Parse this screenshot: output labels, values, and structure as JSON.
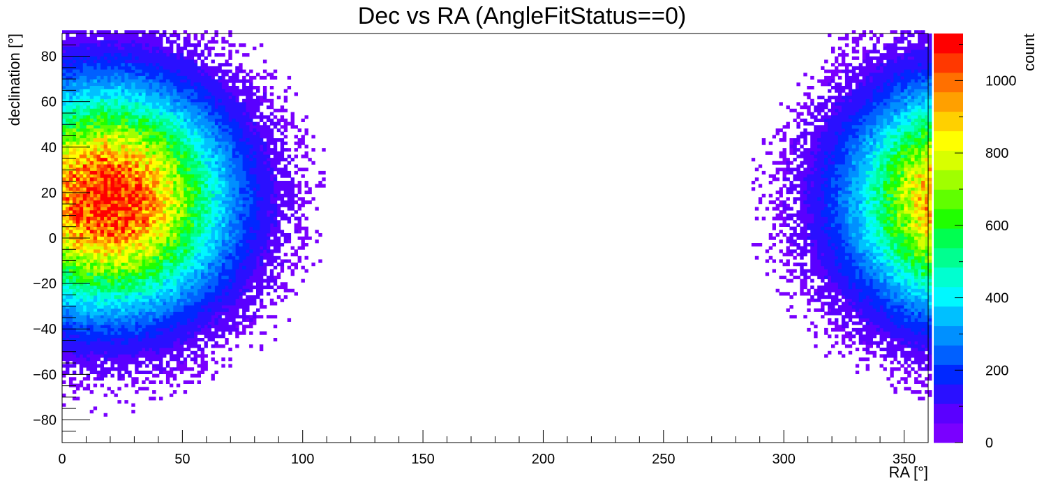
{
  "chart_data": {
    "type": "heatmap",
    "title": "Dec vs RA (AngleFitStatus==0)",
    "xlabel": "RA [°]",
    "ylabel": "declination [°]",
    "colorbar_label": "count",
    "xlim": [
      0,
      360
    ],
    "ylim": [
      -90,
      90
    ],
    "zlim": [
      0,
      1130
    ],
    "x_ticks": [
      0,
      50,
      100,
      150,
      200,
      250,
      300,
      350
    ],
    "x_tick_labels": [
      "0",
      "50",
      "100",
      "150",
      "200",
      "250",
      "300",
      "350"
    ],
    "y_ticks": [
      -80,
      -60,
      -40,
      -20,
      0,
      20,
      40,
      60,
      80
    ],
    "y_tick_labels": [
      "−80",
      "−60",
      "−40",
      "−20",
      "0",
      "20",
      "40",
      "60",
      "80"
    ],
    "z_ticks": [
      0,
      200,
      400,
      600,
      800,
      1000
    ],
    "z_tick_labels": [
      "0",
      "200",
      "400",
      "600",
      "800",
      "1000"
    ],
    "palette": [
      "#7a00ff",
      "#5a00ff",
      "#2a10ff",
      "#0028ff",
      "#0060ff",
      "#0090ff",
      "#00c0ff",
      "#00f8ff",
      "#00ffd0",
      "#00ff90",
      "#00ff50",
      "#20ff00",
      "#60ff00",
      "#a0ff00",
      "#d8ff00",
      "#ffff00",
      "#ffd000",
      "#ffa000",
      "#ff7000",
      "#ff3800",
      "#ff0000"
    ],
    "hotspot": {
      "ra": 19,
      "dec": 17,
      "peak_count": 1100
    },
    "grid": false,
    "legend": "colorbar-right"
  }
}
